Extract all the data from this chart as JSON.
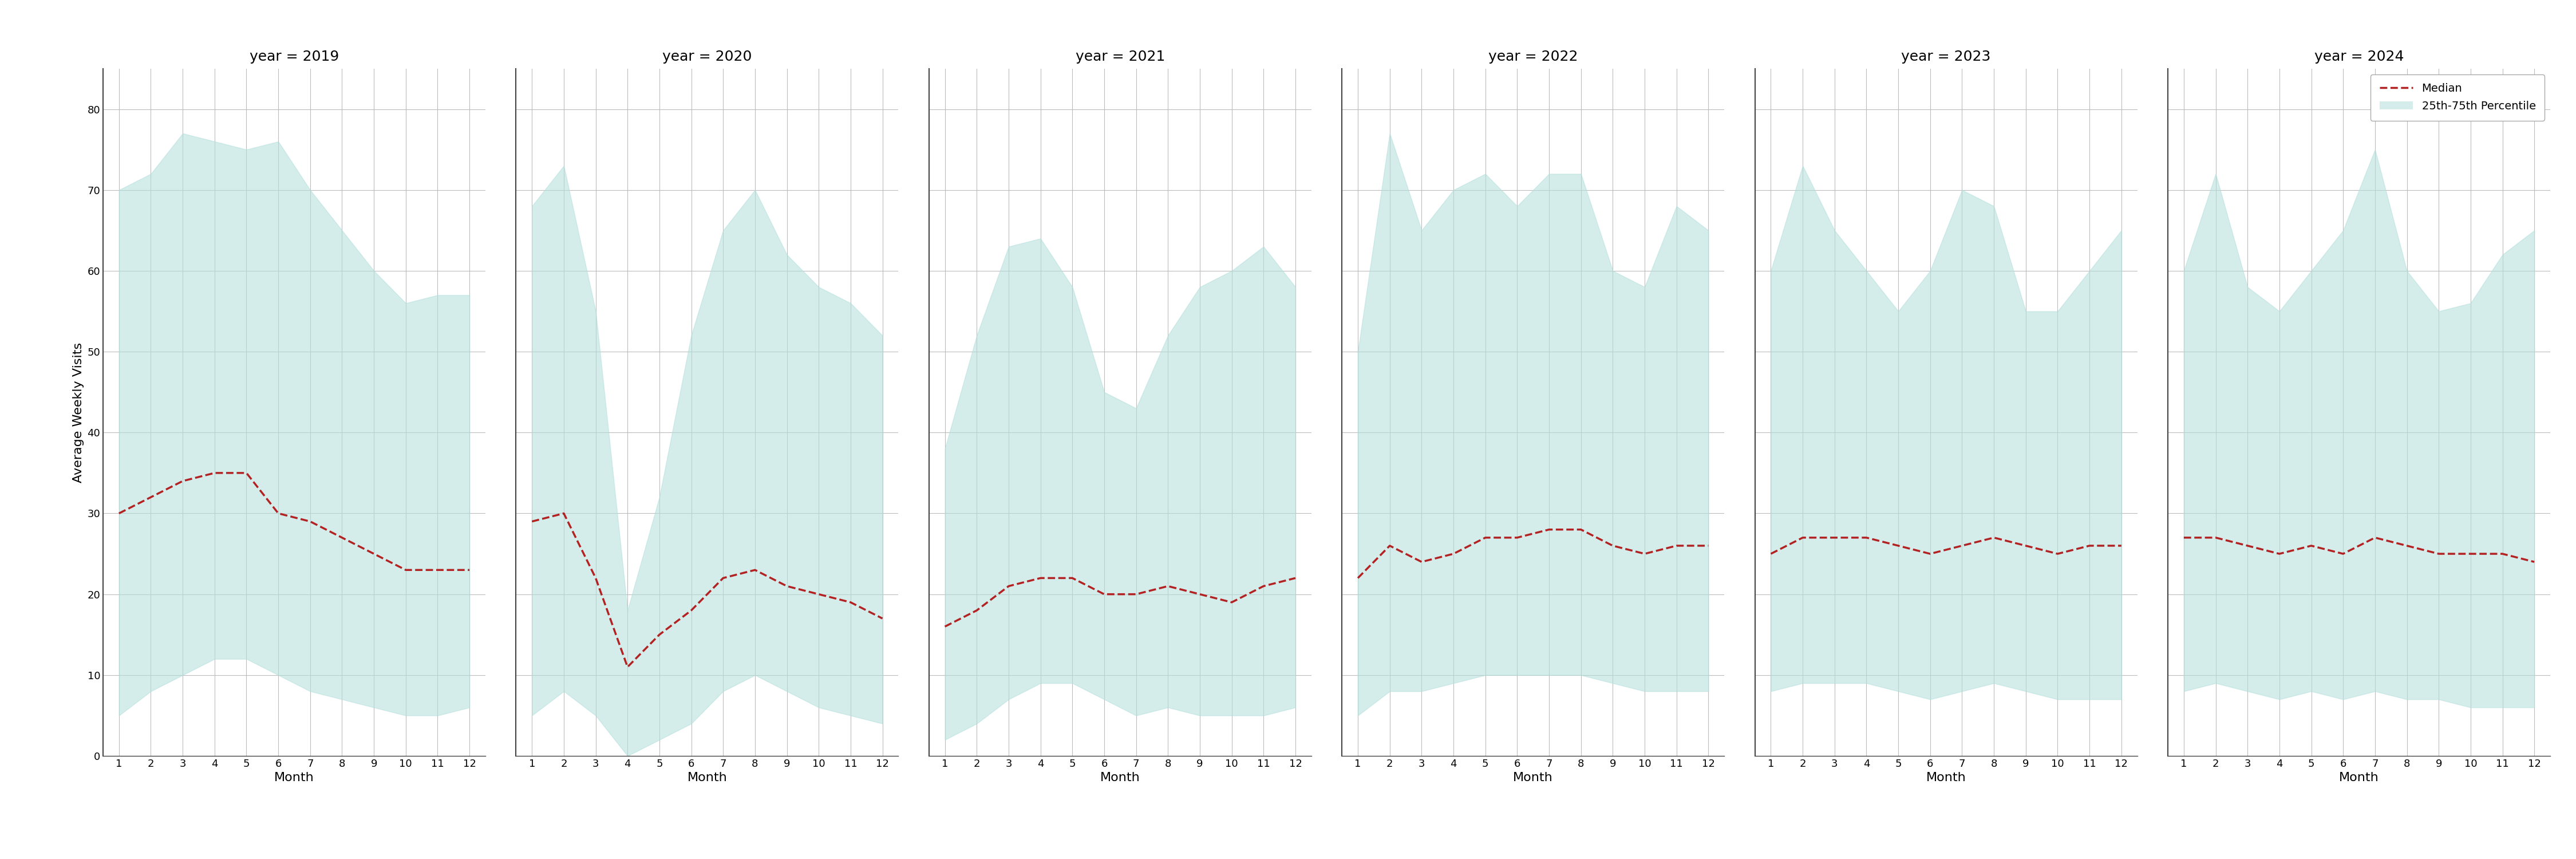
{
  "years": [
    2019,
    2020,
    2021,
    2022,
    2023,
    2024
  ],
  "months": [
    1,
    2,
    3,
    4,
    5,
    6,
    7,
    8,
    9,
    10,
    11,
    12
  ],
  "median": {
    "2019": [
      30,
      32,
      34,
      35,
      35,
      30,
      29,
      27,
      25,
      23,
      23,
      23
    ],
    "2020": [
      29,
      30,
      22,
      11,
      15,
      18,
      22,
      23,
      21,
      20,
      19,
      17
    ],
    "2021": [
      16,
      18,
      21,
      22,
      22,
      20,
      20,
      21,
      20,
      19,
      21,
      22
    ],
    "2022": [
      22,
      26,
      24,
      25,
      27,
      27,
      28,
      28,
      26,
      25,
      26,
      26
    ],
    "2023": [
      25,
      27,
      27,
      27,
      26,
      25,
      26,
      27,
      26,
      25,
      26,
      26
    ],
    "2024": [
      27,
      27,
      26,
      25,
      26,
      25,
      27,
      26,
      25,
      25,
      25,
      24
    ]
  },
  "q25": {
    "2019": [
      5,
      8,
      10,
      12,
      12,
      10,
      8,
      7,
      6,
      5,
      5,
      6
    ],
    "2020": [
      5,
      8,
      5,
      0,
      2,
      4,
      8,
      10,
      8,
      6,
      5,
      4
    ],
    "2021": [
      2,
      4,
      7,
      9,
      9,
      7,
      5,
      6,
      5,
      5,
      5,
      6
    ],
    "2022": [
      5,
      8,
      8,
      9,
      10,
      10,
      10,
      10,
      9,
      8,
      8,
      8
    ],
    "2023": [
      8,
      9,
      9,
      9,
      8,
      7,
      8,
      9,
      8,
      7,
      7,
      7
    ],
    "2024": [
      8,
      9,
      8,
      7,
      8,
      7,
      8,
      7,
      7,
      6,
      6,
      6
    ]
  },
  "q75": {
    "2019": [
      70,
      72,
      77,
      76,
      75,
      76,
      70,
      65,
      60,
      56,
      57,
      57
    ],
    "2020": [
      68,
      73,
      55,
      18,
      32,
      52,
      65,
      70,
      62,
      58,
      56,
      52
    ],
    "2021": [
      38,
      52,
      63,
      64,
      58,
      45,
      43,
      52,
      58,
      60,
      63,
      58
    ],
    "2022": [
      50,
      77,
      65,
      70,
      72,
      68,
      72,
      72,
      60,
      58,
      68,
      65
    ],
    "2023": [
      60,
      73,
      65,
      60,
      55,
      60,
      70,
      68,
      55,
      55,
      60,
      65
    ],
    "2024": [
      60,
      72,
      58,
      55,
      60,
      65,
      75,
      60,
      55,
      56,
      62,
      65
    ]
  },
  "fill_color": "#b2dfdb",
  "fill_alpha": 0.55,
  "line_color": "#b22222",
  "line_style": "--",
  "line_width": 2.5,
  "ylabel": "Average Weekly Visits",
  "xlabel": "Month",
  "ylim": [
    0,
    85
  ],
  "yticks": [
    0,
    10,
    20,
    30,
    40,
    50,
    60,
    70,
    80
  ],
  "xticks": [
    1,
    2,
    3,
    4,
    5,
    6,
    7,
    8,
    9,
    10,
    11,
    12
  ],
  "bg_color": "#ffffff",
  "grid_color": "#bbbbbb",
  "legend_median_label": "Median",
  "legend_band_label": "25th-75th Percentile",
  "title_prefix": "year = "
}
